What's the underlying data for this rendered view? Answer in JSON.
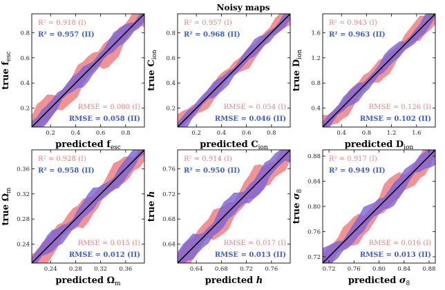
{
  "figure": {
    "title": "Noisy maps",
    "colors": {
      "model_I": "#f08080",
      "model_II": "#3b5bdb",
      "band_II": "#7b61d6",
      "truth_line": "#000000"
    }
  },
  "chart_data": [
    {
      "type": "scatter",
      "id": "fesc",
      "xlabel_main": "predicted f",
      "xlabel_sub": "esc",
      "ylabel_main": "true f",
      "ylabel_sub": "esc",
      "xlim": [
        0.05,
        0.95
      ],
      "ylim": [
        0.05,
        0.95
      ],
      "xticks": [
        0.2,
        0.4,
        0.6,
        0.8
      ],
      "xticklabels": [
        "0.2",
        "0.4",
        "0.6",
        "0.8"
      ],
      "yticks": [
        0.2,
        0.4,
        0.6,
        0.8
      ],
      "yticklabels": [
        "0.2",
        "0.4",
        "0.6",
        "0.8"
      ],
      "r2_I": "R² = 0.918 (I)",
      "r2_II": "R² = 0.957 (II)",
      "rmse_I": "RMSE = 0.080 (I)",
      "rmse_II": "RMSE = 0.058 (II)",
      "width_I": 0.09,
      "width_II": 0.06
    },
    {
      "type": "scatter",
      "id": "cion",
      "xlabel_main": "predicted C",
      "xlabel_sub": "ion",
      "ylabel_main": "true C",
      "ylabel_sub": "ion",
      "xlim": [
        0.05,
        0.95
      ],
      "ylim": [
        0.05,
        0.95
      ],
      "xticks": [
        0.2,
        0.4,
        0.6,
        0.8
      ],
      "xticklabels": [
        "0.2",
        "0.4",
        "0.6",
        "0.8"
      ],
      "yticks": [
        0.2,
        0.4,
        0.6,
        0.8
      ],
      "yticklabels": [
        "0.2",
        "0.4",
        "0.6",
        "0.8"
      ],
      "r2_I": "R² = 0.957 (I)",
      "r2_II": "R² = 0.968 (II)",
      "rmse_I": "RMSE = 0.054 (I)",
      "rmse_II": "RMSE = 0.046 (II)",
      "width_I": 0.06,
      "width_II": 0.05
    },
    {
      "type": "scatter",
      "id": "dion",
      "xlabel_main": "predicted D",
      "xlabel_sub": "ion",
      "ylabel_main": "true D",
      "ylabel_sub": "ion",
      "xlim": [
        0.1,
        1.9
      ],
      "ylim": [
        0.1,
        1.9
      ],
      "xticks": [
        0.4,
        0.8,
        1.2,
        1.6
      ],
      "xticklabels": [
        "0.4",
        "0.8",
        "1.2",
        "1.6"
      ],
      "yticks": [
        0.4,
        0.8,
        1.2,
        1.6
      ],
      "yticklabels": [
        "0.4",
        "0.8",
        "1.2",
        "1.6"
      ],
      "r2_I": "R² = 0.943 (I)",
      "r2_II": "R² = 0.963 (II)",
      "rmse_I": "RMSE = 0.126 (I)",
      "rmse_II": "RMSE = 0.102 (II)",
      "width_I": 0.14,
      "width_II": 0.11
    },
    {
      "type": "scatter",
      "id": "omegam",
      "xlabel_main": "predicted Ω",
      "xlabel_sub": "m",
      "ylabel_main": "true Ω",
      "ylabel_sub": "m",
      "xlim": [
        0.21,
        0.39
      ],
      "ylim": [
        0.21,
        0.39
      ],
      "xticks": [
        0.24,
        0.28,
        0.32,
        0.36
      ],
      "xticklabels": [
        "0.24",
        "0.28",
        "0.32",
        "0.36"
      ],
      "yticks": [
        0.24,
        0.28,
        0.32,
        0.36
      ],
      "yticklabels": [
        "0.24",
        "0.28",
        "0.32",
        "0.36"
      ],
      "r2_I": "R² = 0.928 (I)",
      "r2_II": "R² = 0.958 (II)",
      "rmse_I": "RMSE = 0.015 (I)",
      "rmse_II": "RMSE = 0.012 (II)",
      "width_I": 0.017,
      "width_II": 0.013
    },
    {
      "type": "scatter",
      "id": "h",
      "xlabel_main": "predicted ",
      "xlabel_ital": "h",
      "ylabel_main": "true ",
      "ylabel_ital": "h",
      "xlim": [
        0.61,
        0.79
      ],
      "ylim": [
        0.61,
        0.79
      ],
      "xticks": [
        0.64,
        0.68,
        0.72,
        0.76
      ],
      "xticklabels": [
        "0.64",
        "0.68",
        "0.72",
        "0.76"
      ],
      "yticks": [
        0.64,
        0.68,
        0.72,
        0.76
      ],
      "yticklabels": [
        "0.64",
        "0.68",
        "0.72",
        "0.76"
      ],
      "r2_I": "R² = 0.914 (I)",
      "r2_II": "R² = 0.950 (II)",
      "rmse_I": "RMSE = 0.017 (I)",
      "rmse_II": "RMSE = 0.013 (II)",
      "width_I": 0.019,
      "width_II": 0.015
    },
    {
      "type": "scatter",
      "id": "sigma8",
      "xlabel_main": "predicted ",
      "xlabel_ital": "σ",
      "xlabel_sub": "8",
      "ylabel_main": "true ",
      "ylabel_ital": "σ",
      "ylabel_sub": "8",
      "xlim": [
        0.71,
        0.89
      ],
      "ylim": [
        0.71,
        0.89
      ],
      "xticks": [
        0.72,
        0.76,
        0.8,
        0.84,
        0.88
      ],
      "xticklabels": [
        "0.72",
        "0.76",
        "0.80",
        "0.84",
        "0.88"
      ],
      "yticks": [
        0.72,
        0.76,
        0.8,
        0.84,
        0.88
      ],
      "yticklabels": [
        "0.72",
        "0.76",
        "0.80",
        "0.84",
        "0.88"
      ],
      "r2_I": "R² = 0.917 (I)",
      "r2_II": "R² = 0.949 (II)",
      "rmse_I": "RMSE = 0.016 (I)",
      "rmse_II": "RMSE = 0.013 (II)",
      "width_I": 0.018,
      "width_II": 0.014
    }
  ]
}
